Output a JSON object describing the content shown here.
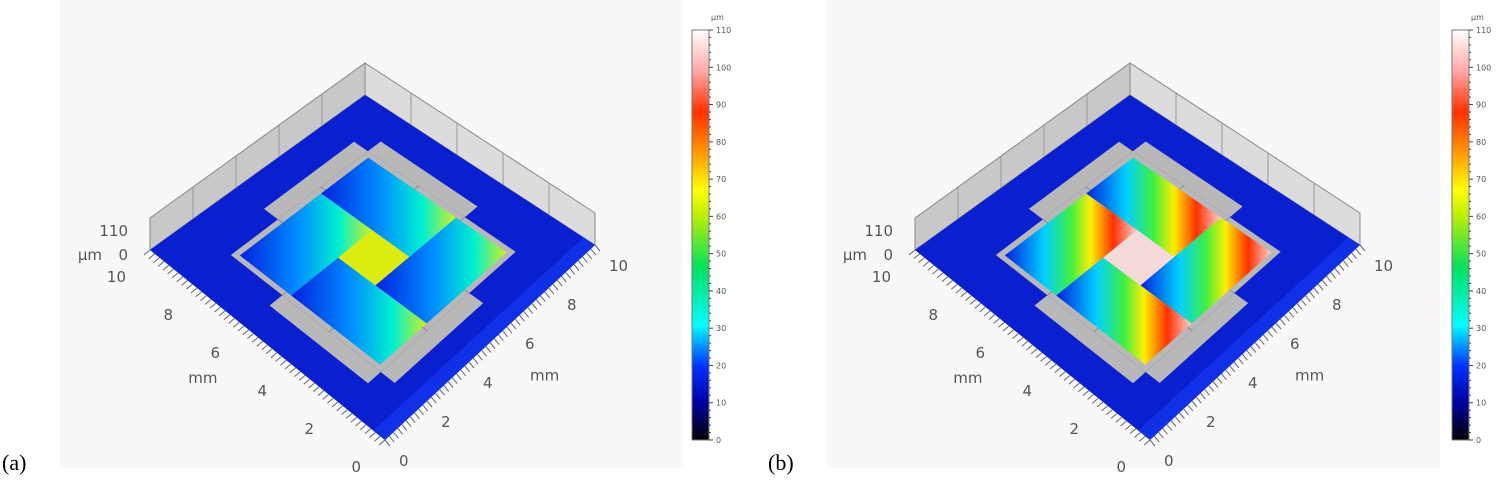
{
  "panels": [
    {
      "label": "(a)"
    },
    {
      "label": "(b)"
    }
  ],
  "chart_data": [
    {
      "type": "surface",
      "panel": "(a)",
      "x_axis": {
        "label": "mm",
        "ticks": [
          "0",
          "2",
          "4",
          "6",
          "8",
          "10"
        ],
        "range": [
          0,
          10
        ]
      },
      "y_axis": {
        "label": "mm",
        "ticks": [
          "0",
          "2",
          "4",
          "6",
          "8",
          "10"
        ],
        "range": [
          0,
          10
        ]
      },
      "z_axis": {
        "label": "µm",
        "ticks": [
          "0",
          "110"
        ],
        "range": [
          0,
          110
        ]
      },
      "colorbar": {
        "unit": "µm",
        "ticks": [
          "0",
          "10",
          "20",
          "30",
          "40",
          "50",
          "60",
          "70",
          "80",
          "90",
          "100",
          "110"
        ],
        "range": [
          0,
          110
        ]
      },
      "features": {
        "center_pad_height": 62,
        "strip_peak_height": 55,
        "base_height": 10
      }
    },
    {
      "type": "surface",
      "panel": "(b)",
      "x_axis": {
        "label": "mm",
        "ticks": [
          "0",
          "2",
          "4",
          "6",
          "8",
          "10"
        ],
        "range": [
          0,
          10
        ]
      },
      "y_axis": {
        "label": "mm",
        "ticks": [
          "0",
          "2",
          "4",
          "6",
          "8",
          "10"
        ],
        "range": [
          0,
          10
        ]
      },
      "z_axis": {
        "label": "µm",
        "ticks": [
          "0",
          "110"
        ],
        "range": [
          0,
          110
        ]
      },
      "colorbar": {
        "unit": "µm",
        "ticks": [
          "0",
          "10",
          "20",
          "30",
          "40",
          "50",
          "60",
          "70",
          "80",
          "90",
          "100",
          "110"
        ],
        "range": [
          0,
          110
        ]
      },
      "features": {
        "center_pad_height": 105,
        "strip_peak_height": 95,
        "base_height": 10
      }
    }
  ]
}
